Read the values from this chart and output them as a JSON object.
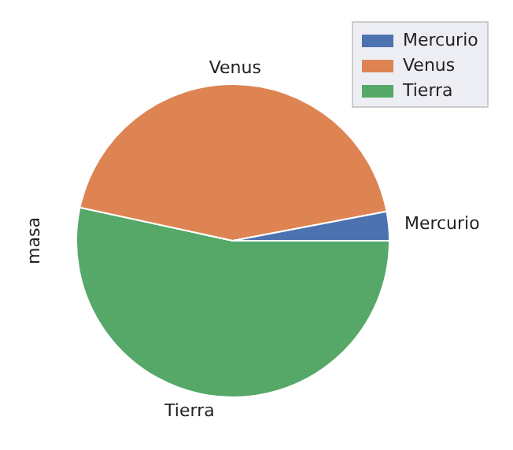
{
  "chart_data": {
    "type": "pie",
    "ylabel": "masa",
    "categories": [
      "Mercurio",
      "Venus",
      "Tierra"
    ],
    "values": [
      3.0,
      43.6,
      53.4
    ],
    "colors": [
      "#4c72b0",
      "#dd8452",
      "#55a868"
    ],
    "legend": "top right"
  }
}
